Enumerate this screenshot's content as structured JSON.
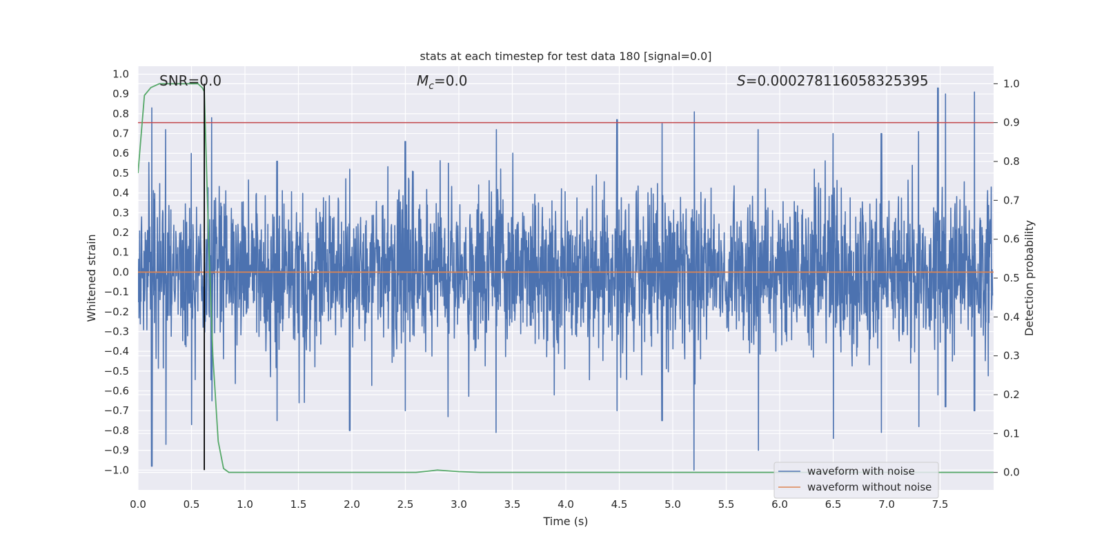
{
  "chart_data": {
    "type": "line",
    "title": "stats at each timestep for test data 180 [signal=0.0]",
    "xlabel": "Time (s)",
    "ylabel_left": "Whitened strain",
    "ylabel_right": "Detection probability",
    "xlim": [
      0.0,
      8.0
    ],
    "ylim_left": [
      -1.1,
      1.04
    ],
    "ylim_right": [
      -0.045,
      1.045
    ],
    "xticks": [
      0.0,
      0.5,
      1.0,
      1.5,
      2.0,
      2.5,
      3.0,
      3.5,
      4.0,
      4.5,
      5.0,
      5.5,
      6.0,
      6.5,
      7.0,
      7.5
    ],
    "xtick_labels": [
      "0.0",
      "0.5",
      "1.0",
      "1.5",
      "2.0",
      "2.5",
      "3.0",
      "3.5",
      "4.0",
      "4.5",
      "5.0",
      "5.5",
      "6.0",
      "6.5",
      "7.0",
      "7.5"
    ],
    "yticks_left": [
      1.0,
      0.9,
      0.8,
      0.7,
      0.6,
      0.5,
      0.4,
      0.3,
      0.2,
      0.1,
      0.0,
      -0.1,
      -0.2,
      -0.3,
      -0.4,
      -0.5,
      -0.6,
      -0.7,
      -0.8,
      -0.9,
      -1.0
    ],
    "ytick_labels_left": [
      "1.0",
      "0.9",
      "0.8",
      "0.7",
      "0.6",
      "0.5",
      "0.4",
      "0.3",
      "0.2",
      "0.1",
      "0.0",
      "−0.1",
      "−0.2",
      "−0.3",
      "−0.4",
      "−0.5",
      "−0.6",
      "−0.7",
      "−0.8",
      "−0.9",
      "−1.0"
    ],
    "yticks_right": [
      1.0,
      0.9,
      0.8,
      0.7,
      0.6,
      0.5,
      0.4,
      0.3,
      0.2,
      0.1,
      0.0
    ],
    "ytick_labels_right": [
      "1.0",
      "0.9",
      "0.8",
      "0.7",
      "0.6",
      "0.5",
      "0.4",
      "0.3",
      "0.2",
      "0.1",
      "0.0"
    ],
    "grid": true,
    "legend_position": "lower-right",
    "series": [
      {
        "name": "waveform with noise",
        "axis": "left",
        "color": "#4c72b0",
        "kind": "noise",
        "spikes": [
          [
            0.13,
            0.83,
            -0.98
          ],
          [
            0.26,
            0.72,
            -0.87
          ],
          [
            0.5,
            0.6,
            -0.77
          ],
          [
            0.69,
            0.78,
            -0.65
          ],
          [
            1.3,
            0.56,
            -0.75
          ],
          [
            1.98,
            0.52,
            -0.8
          ],
          [
            2.5,
            0.66,
            -0.7
          ],
          [
            2.9,
            0.55,
            -0.73
          ],
          [
            3.35,
            0.72,
            -0.81
          ],
          [
            4.48,
            0.77,
            -0.7
          ],
          [
            4.9,
            0.75,
            -0.75
          ],
          [
            5.2,
            0.81,
            -1.0
          ],
          [
            5.8,
            0.72,
            -0.9
          ],
          [
            6.5,
            0.7,
            -0.84
          ],
          [
            6.95,
            0.7,
            -0.81
          ],
          [
            7.3,
            0.71,
            -0.78
          ],
          [
            7.48,
            0.93,
            -0.62
          ],
          [
            7.55,
            0.9,
            -0.68
          ],
          [
            7.82,
            0.91,
            -0.7
          ]
        ]
      },
      {
        "name": "waveform without noise",
        "axis": "left",
        "color": "#dd8452",
        "x": [
          0.0,
          8.0
        ],
        "y": [
          0.0,
          0.0
        ]
      },
      {
        "axis": "right",
        "color": "#55a868",
        "x": [
          0.0,
          0.06,
          0.12,
          0.2,
          0.3,
          0.4,
          0.5,
          0.56,
          0.6,
          0.62,
          0.66,
          0.7,
          0.75,
          0.8,
          0.85,
          0.9,
          1.0,
          2.0,
          2.6,
          2.7,
          2.8,
          2.9,
          3.0,
          3.2,
          4.0,
          8.0
        ],
        "y": [
          0.77,
          0.97,
          0.99,
          1.0,
          1.0,
          1.0,
          1.0,
          1.0,
          0.99,
          0.98,
          0.6,
          0.3,
          0.08,
          0.01,
          0.0,
          0.0,
          0.0,
          0.0,
          0.0,
          0.003,
          0.006,
          0.004,
          0.002,
          0.0,
          0.0,
          0.0
        ]
      }
    ],
    "threshold_line": {
      "axis": "right",
      "y": 0.9,
      "color": "#c44e52"
    },
    "marker_line": {
      "x": 0.62,
      "color": "#000000"
    },
    "annotations": {
      "snr": "SNR=0.0",
      "mc_symbol": "M",
      "mc_subscript": "c",
      "mc_value": "=0.0",
      "s_symbol": "S",
      "s_value": "=0.000278116058325395"
    }
  }
}
